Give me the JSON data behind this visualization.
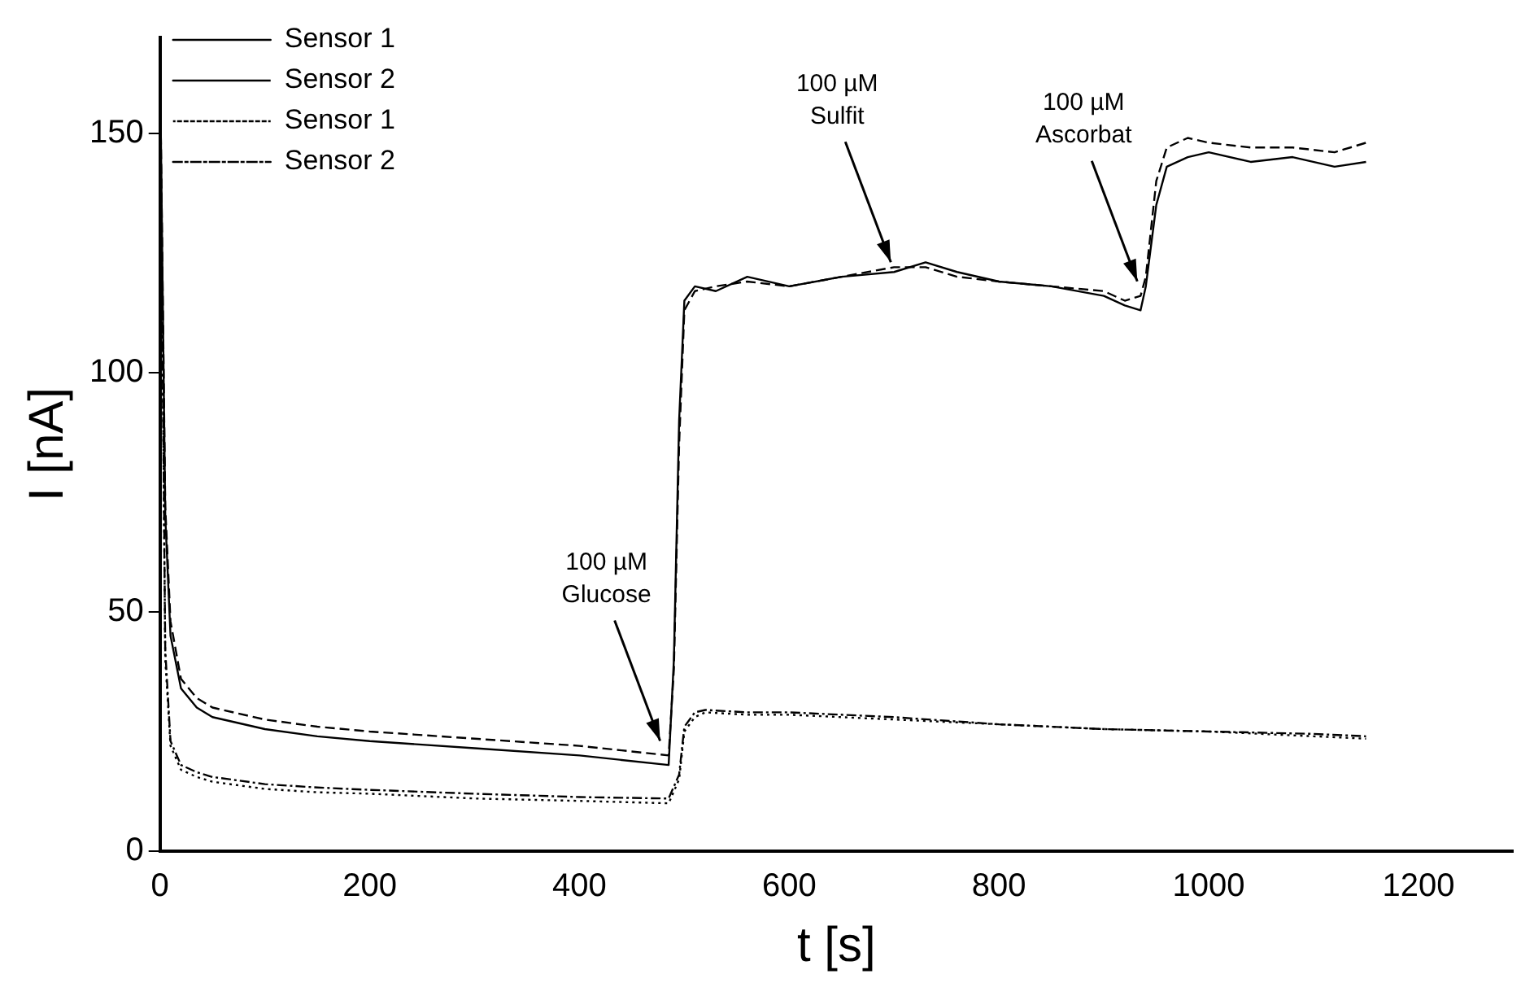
{
  "chart_data": {
    "type": "line",
    "xlabel": "t [s]",
    "ylabel": "I [nA]",
    "xlim": [
      0,
      1290
    ],
    "ylim": [
      0,
      170
    ],
    "xticks": [
      0,
      200,
      400,
      600,
      800,
      1000,
      1200
    ],
    "yticks": [
      0,
      50,
      100,
      150
    ],
    "grid": false,
    "legend": "top left",
    "marker": "none",
    "annotations": [
      {
        "text": "100 µM\nGlucose",
        "x": 480,
        "y": 21
      },
      {
        "text": "100 µM\nSulfit",
        "x": 700,
        "y": 121
      },
      {
        "text": "100 µM\nAscorbat",
        "x": 935,
        "y": 117
      }
    ],
    "series": [
      {
        "name": "Sensor 1",
        "color": "#000000",
        "line_style": "solid",
        "x": [
          0,
          5,
          10,
          20,
          35,
          50,
          100,
          150,
          200,
          300,
          400,
          485,
          490,
          495,
          500,
          510,
          530,
          560,
          600,
          650,
          700,
          730,
          760,
          800,
          850,
          900,
          920,
          935,
          940,
          950,
          960,
          980,
          1000,
          1040,
          1080,
          1120,
          1150
        ],
        "values": [
          165,
          70,
          45,
          34,
          30,
          28,
          25.5,
          24,
          23,
          21.5,
          20,
          18,
          40,
          90,
          115,
          118,
          117,
          120,
          118,
          120,
          121,
          123,
          121,
          119,
          118,
          116,
          114,
          113,
          118,
          135,
          143,
          145,
          146,
          144,
          145,
          143,
          144
        ]
      },
      {
        "name": "Sensor 2",
        "color": "#000000",
        "line_style": "dashed",
        "x": [
          0,
          5,
          10,
          20,
          35,
          50,
          100,
          150,
          200,
          300,
          400,
          485,
          490,
          495,
          500,
          510,
          530,
          560,
          600,
          650,
          700,
          730,
          760,
          800,
          850,
          900,
          920,
          935,
          940,
          950,
          960,
          980,
          1000,
          1040,
          1080,
          1120,
          1150
        ],
        "values": [
          165,
          72,
          48,
          36,
          32,
          30,
          27.5,
          26,
          25,
          23.5,
          22,
          20,
          38,
          85,
          113,
          117,
          118,
          119,
          118,
          120,
          122,
          122,
          120,
          119,
          118,
          117,
          115,
          116,
          120,
          140,
          147,
          149,
          148,
          147,
          147,
          146,
          148
        ]
      },
      {
        "name": "Sensor 1",
        "color": "#000000",
        "line_style": "dotted",
        "x": [
          0,
          5,
          10,
          20,
          35,
          50,
          100,
          150,
          200,
          300,
          400,
          485,
          495,
          500,
          510,
          520,
          560,
          600,
          700,
          800,
          900,
          1000,
          1100,
          1150
        ],
        "values": [
          165,
          40,
          22,
          17,
          15.5,
          14.5,
          13,
          12.3,
          12,
          11,
          10.5,
          10,
          15,
          25,
          28,
          29,
          28.5,
          28.5,
          27.5,
          26.5,
          25.5,
          25,
          24,
          23.5
        ]
      },
      {
        "name": "Sensor 2",
        "color": "#000000",
        "line_style": "dashdot",
        "x": [
          0,
          5,
          10,
          20,
          35,
          50,
          100,
          150,
          200,
          300,
          400,
          485,
          495,
          500,
          510,
          520,
          560,
          600,
          700,
          800,
          900,
          1000,
          1100,
          1150
        ],
        "values": [
          165,
          42,
          23,
          18,
          16.5,
          15.5,
          14,
          13.3,
          12.8,
          12,
          11.3,
          11,
          16,
          26,
          29,
          29.5,
          29,
          29,
          28,
          26.5,
          25.5,
          25,
          24.5,
          24
        ]
      }
    ]
  }
}
